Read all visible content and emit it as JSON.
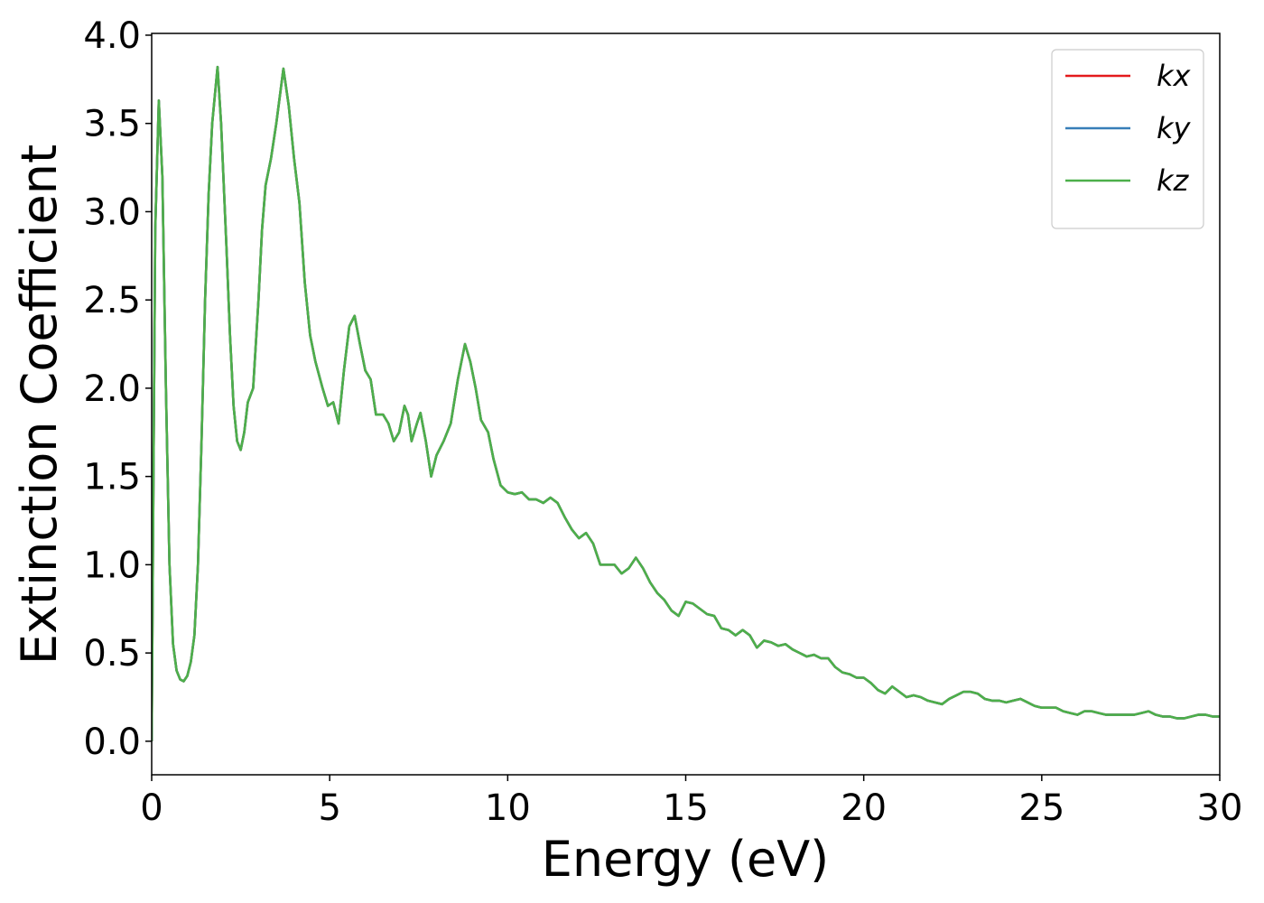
{
  "chart_data": {
    "type": "line",
    "xlabel": "Energy (eV)",
    "ylabel": "Extinction Coefficient",
    "xlim": [
      0,
      30
    ],
    "ylim": [
      -0.19,
      4.01
    ],
    "xticks": [
      0,
      5,
      10,
      15,
      20,
      25,
      30
    ],
    "yticks": [
      {
        "value": 0,
        "label": "0.0"
      },
      {
        "value": 0.5,
        "label": "0.5"
      },
      {
        "value": 1,
        "label": "1.0"
      },
      {
        "value": 1.5,
        "label": "1.5"
      },
      {
        "value": 2,
        "label": "2.0"
      },
      {
        "value": 2.5,
        "label": "2.5"
      },
      {
        "value": 3,
        "label": "3.0"
      },
      {
        "value": 3.5,
        "label": "3.5"
      },
      {
        "value": 4,
        "label": "4.0"
      }
    ],
    "legend": "upper right",
    "grid": false,
    "x": [
      0,
      0.05,
      0.1,
      0.2,
      0.3,
      0.4,
      0.5,
      0.6,
      0.7,
      0.8,
      0.9,
      1.0,
      1.1,
      1.2,
      1.3,
      1.4,
      1.5,
      1.6,
      1.7,
      1.85,
      1.95,
      2.1,
      2.2,
      2.3,
      2.4,
      2.5,
      2.6,
      2.7,
      2.85,
      3.0,
      3.1,
      3.2,
      3.35,
      3.5,
      3.7,
      3.85,
      4.0,
      4.15,
      4.3,
      4.45,
      4.6,
      4.8,
      4.95,
      5.1,
      5.25,
      5.4,
      5.55,
      5.7,
      5.85,
      6.0,
      6.15,
      6.3,
      6.5,
      6.65,
      6.8,
      6.95,
      7.1,
      7.2,
      7.3,
      7.45,
      7.55,
      7.7,
      7.85,
      8.0,
      8.2,
      8.4,
      8.6,
      8.8,
      8.95,
      9.1,
      9.25,
      9.45,
      9.6,
      9.8,
      10.0,
      10.2,
      10.4,
      10.6,
      10.8,
      11.0,
      11.2,
      11.4,
      11.6,
      11.8,
      12.0,
      12.2,
      12.4,
      12.6,
      12.8,
      13.0,
      13.2,
      13.4,
      13.6,
      13.8,
      14.0,
      14.2,
      14.4,
      14.6,
      14.8,
      15.0,
      15.2,
      15.4,
      15.6,
      15.8,
      16.0,
      16.2,
      16.4,
      16.6,
      16.8,
      17.0,
      17.2,
      17.4,
      17.6,
      17.8,
      18.0,
      18.2,
      18.4,
      18.6,
      18.8,
      19.0,
      19.2,
      19.4,
      19.6,
      19.8,
      20.0,
      20.2,
      20.4,
      20.6,
      20.8,
      21.0,
      21.2,
      21.4,
      21.6,
      21.8,
      22.0,
      22.2,
      22.4,
      22.6,
      22.8,
      23.0,
      23.2,
      23.4,
      23.6,
      23.8,
      24.0,
      24.2,
      24.4,
      24.6,
      24.8,
      25.0,
      25.2,
      25.4,
      25.6,
      25.8,
      26.0,
      26.2,
      26.4,
      26.6,
      26.8,
      27.0,
      27.2,
      27.4,
      27.6,
      27.8,
      28.0,
      28.2,
      28.4,
      28.6,
      28.8,
      29.0,
      29.2,
      29.4,
      29.6,
      29.8,
      30.0
    ],
    "series": [
      {
        "name": "kx",
        "color": "#e41a1c",
        "values": [
          0,
          1.5,
          2.9,
          3.63,
          3.2,
          2.0,
          1.0,
          0.55,
          0.4,
          0.35,
          0.34,
          0.37,
          0.45,
          0.6,
          1.0,
          1.7,
          2.5,
          3.1,
          3.5,
          3.82,
          3.5,
          2.8,
          2.3,
          1.9,
          1.7,
          1.65,
          1.75,
          1.92,
          2.0,
          2.5,
          2.9,
          3.15,
          3.3,
          3.5,
          3.81,
          3.6,
          3.3,
          3.05,
          2.6,
          2.3,
          2.15,
          2.0,
          1.9,
          1.92,
          1.8,
          2.1,
          2.35,
          2.41,
          2.25,
          2.1,
          2.05,
          1.85,
          1.85,
          1.8,
          1.7,
          1.75,
          1.9,
          1.85,
          1.7,
          1.8,
          1.86,
          1.7,
          1.5,
          1.62,
          1.7,
          1.8,
          2.05,
          2.25,
          2.15,
          2.0,
          1.82,
          1.75,
          1.6,
          1.45,
          1.41,
          1.4,
          1.41,
          1.37,
          1.37,
          1.35,
          1.38,
          1.35,
          1.27,
          1.2,
          1.15,
          1.18,
          1.12,
          1.0,
          1.0,
          1.0,
          0.95,
          0.98,
          1.04,
          0.98,
          0.9,
          0.84,
          0.8,
          0.74,
          0.71,
          0.79,
          0.78,
          0.75,
          0.72,
          0.71,
          0.64,
          0.63,
          0.6,
          0.63,
          0.6,
          0.53,
          0.57,
          0.56,
          0.54,
          0.55,
          0.52,
          0.5,
          0.48,
          0.49,
          0.47,
          0.47,
          0.42,
          0.39,
          0.38,
          0.36,
          0.36,
          0.33,
          0.29,
          0.27,
          0.31,
          0.28,
          0.25,
          0.26,
          0.25,
          0.23,
          0.22,
          0.21,
          0.24,
          0.26,
          0.28,
          0.28,
          0.27,
          0.24,
          0.23,
          0.23,
          0.22,
          0.23,
          0.24,
          0.22,
          0.2,
          0.19,
          0.19,
          0.19,
          0.17,
          0.16,
          0.15,
          0.17,
          0.17,
          0.16,
          0.15,
          0.15,
          0.15,
          0.15,
          0.15,
          0.16,
          0.17,
          0.15,
          0.14,
          0.14,
          0.13,
          0.13,
          0.14,
          0.15,
          0.15,
          0.14,
          0.14
        ]
      },
      {
        "name": "ky",
        "color": "#377eb8",
        "values": [
          0,
          1.5,
          2.9,
          3.63,
          3.2,
          2.0,
          1.0,
          0.55,
          0.4,
          0.35,
          0.34,
          0.37,
          0.45,
          0.6,
          1.0,
          1.7,
          2.5,
          3.1,
          3.5,
          3.82,
          3.5,
          2.8,
          2.3,
          1.9,
          1.7,
          1.65,
          1.75,
          1.92,
          2.0,
          2.5,
          2.9,
          3.15,
          3.3,
          3.5,
          3.81,
          3.6,
          3.3,
          3.05,
          2.6,
          2.3,
          2.15,
          2.0,
          1.9,
          1.92,
          1.8,
          2.1,
          2.35,
          2.41,
          2.25,
          2.1,
          2.05,
          1.85,
          1.85,
          1.8,
          1.7,
          1.75,
          1.9,
          1.85,
          1.7,
          1.8,
          1.86,
          1.7,
          1.5,
          1.62,
          1.7,
          1.8,
          2.05,
          2.25,
          2.15,
          2.0,
          1.82,
          1.75,
          1.6,
          1.45,
          1.41,
          1.4,
          1.41,
          1.37,
          1.37,
          1.35,
          1.38,
          1.35,
          1.27,
          1.2,
          1.15,
          1.18,
          1.12,
          1.0,
          1.0,
          1.0,
          0.95,
          0.98,
          1.04,
          0.98,
          0.9,
          0.84,
          0.8,
          0.74,
          0.71,
          0.79,
          0.78,
          0.75,
          0.72,
          0.71,
          0.64,
          0.63,
          0.6,
          0.63,
          0.6,
          0.53,
          0.57,
          0.56,
          0.54,
          0.55,
          0.52,
          0.5,
          0.48,
          0.49,
          0.47,
          0.47,
          0.42,
          0.39,
          0.38,
          0.36,
          0.36,
          0.33,
          0.29,
          0.27,
          0.31,
          0.28,
          0.25,
          0.26,
          0.25,
          0.23,
          0.22,
          0.21,
          0.24,
          0.26,
          0.28,
          0.28,
          0.27,
          0.24,
          0.23,
          0.23,
          0.22,
          0.23,
          0.24,
          0.22,
          0.2,
          0.19,
          0.19,
          0.19,
          0.17,
          0.16,
          0.15,
          0.17,
          0.17,
          0.16,
          0.15,
          0.15,
          0.15,
          0.15,
          0.15,
          0.16,
          0.17,
          0.15,
          0.14,
          0.14,
          0.13,
          0.13,
          0.14,
          0.15,
          0.15,
          0.14,
          0.14
        ]
      },
      {
        "name": "kz",
        "color": "#4daf4a",
        "values": [
          0,
          1.5,
          2.9,
          3.63,
          3.2,
          2.0,
          1.0,
          0.55,
          0.4,
          0.35,
          0.34,
          0.37,
          0.45,
          0.6,
          1.0,
          1.7,
          2.5,
          3.1,
          3.5,
          3.82,
          3.5,
          2.8,
          2.3,
          1.9,
          1.7,
          1.65,
          1.75,
          1.92,
          2.0,
          2.5,
          2.9,
          3.15,
          3.3,
          3.5,
          3.81,
          3.6,
          3.3,
          3.05,
          2.6,
          2.3,
          2.15,
          2.0,
          1.9,
          1.92,
          1.8,
          2.1,
          2.35,
          2.41,
          2.25,
          2.1,
          2.05,
          1.85,
          1.85,
          1.8,
          1.7,
          1.75,
          1.9,
          1.85,
          1.7,
          1.8,
          1.86,
          1.7,
          1.5,
          1.62,
          1.7,
          1.8,
          2.05,
          2.25,
          2.15,
          2.0,
          1.82,
          1.75,
          1.6,
          1.45,
          1.41,
          1.4,
          1.41,
          1.37,
          1.37,
          1.35,
          1.38,
          1.35,
          1.27,
          1.2,
          1.15,
          1.18,
          1.12,
          1.0,
          1.0,
          1.0,
          0.95,
          0.98,
          1.04,
          0.98,
          0.9,
          0.84,
          0.8,
          0.74,
          0.71,
          0.79,
          0.78,
          0.75,
          0.72,
          0.71,
          0.64,
          0.63,
          0.6,
          0.63,
          0.6,
          0.53,
          0.57,
          0.56,
          0.54,
          0.55,
          0.52,
          0.5,
          0.48,
          0.49,
          0.47,
          0.47,
          0.42,
          0.39,
          0.38,
          0.36,
          0.36,
          0.33,
          0.29,
          0.27,
          0.31,
          0.28,
          0.25,
          0.26,
          0.25,
          0.23,
          0.22,
          0.21,
          0.24,
          0.26,
          0.28,
          0.28,
          0.27,
          0.24,
          0.23,
          0.23,
          0.22,
          0.23,
          0.24,
          0.22,
          0.2,
          0.19,
          0.19,
          0.19,
          0.17,
          0.16,
          0.15,
          0.17,
          0.17,
          0.16,
          0.15,
          0.15,
          0.15,
          0.15,
          0.15,
          0.16,
          0.17,
          0.15,
          0.14,
          0.14,
          0.13,
          0.13,
          0.14,
          0.15,
          0.15,
          0.14,
          0.14
        ]
      }
    ]
  }
}
